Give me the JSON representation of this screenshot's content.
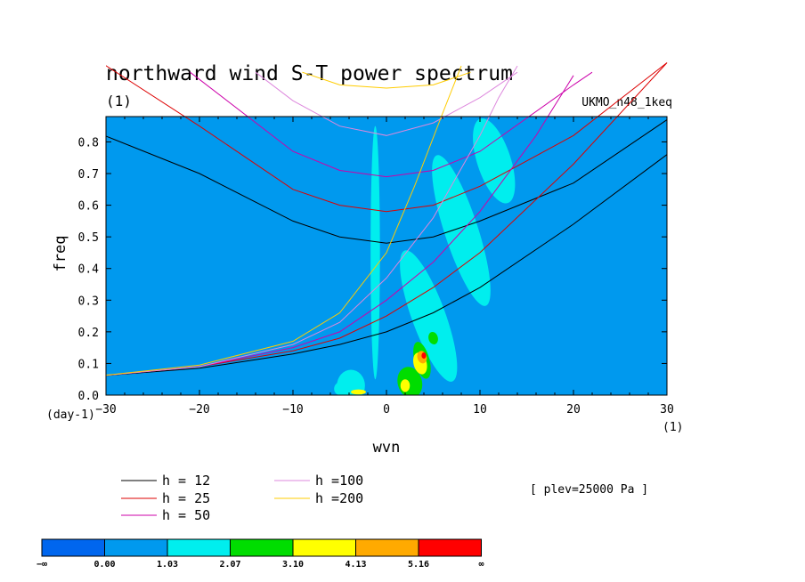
{
  "chart_data": {
    "type": "heatmap",
    "title": "northward wind S-T power spectrum",
    "subtitle": "(1)",
    "model": "UKMO_n48_1keq",
    "xlabel": "wvn",
    "ylabel": "freq",
    "x_unit": "(1)",
    "y_unit": "(day-1)",
    "xlim": [
      -30,
      30
    ],
    "ylim": [
      0,
      0.88
    ],
    "x_ticks": [
      -30,
      -20,
      -10,
      0,
      10,
      20,
      30
    ],
    "y_ticks": [
      0.0,
      0.1,
      0.2,
      0.3,
      0.4,
      0.5,
      0.6,
      0.7,
      0.8
    ],
    "x_tick_labels": [
      "−30",
      "−20",
      "−10",
      "0",
      "10",
      "20",
      "30"
    ],
    "y_tick_labels": [
      "0.0",
      "0.1",
      "0.2",
      "0.3",
      "0.4",
      "0.5",
      "0.6",
      "0.7",
      "0.8"
    ],
    "annotation": "[ plev=25000 Pa ]",
    "background_level": "0.00 to 1.03",
    "series": [
      {
        "name": "h = 12",
        "color": "#000000",
        "points": [
          [
            -31,
            0.83
          ],
          [
            -20,
            0.7
          ],
          [
            -10,
            0.55
          ],
          [
            -5,
            0.5
          ],
          [
            0,
            0.48
          ],
          [
            5,
            0.5
          ],
          [
            10,
            0.55
          ],
          [
            20,
            0.67
          ],
          [
            30,
            0.87
          ]
        ]
      },
      {
        "name": "h = 25",
        "color": "#dd0000",
        "points": [
          [
            -31,
            1.06
          ],
          [
            -20,
            0.85
          ],
          [
            -10,
            0.65
          ],
          [
            -5,
            0.6
          ],
          [
            0,
            0.58
          ],
          [
            5,
            0.6
          ],
          [
            10,
            0.66
          ],
          [
            20,
            0.82
          ],
          [
            30,
            1.05
          ]
        ]
      },
      {
        "name": "h = 50",
        "color": "#cc00aa",
        "points": [
          [
            -21,
            1.02
          ],
          [
            -10,
            0.77
          ],
          [
            -5,
            0.71
          ],
          [
            0,
            0.69
          ],
          [
            5,
            0.71
          ],
          [
            10,
            0.77
          ],
          [
            20,
            0.98
          ],
          [
            22,
            1.02
          ]
        ]
      },
      {
        "name": "h =100",
        "color": "#dd88dd",
        "points": [
          [
            -14,
            1.02
          ],
          [
            -10,
            0.93
          ],
          [
            -5,
            0.85
          ],
          [
            0,
            0.82
          ],
          [
            5,
            0.86
          ],
          [
            10,
            0.94
          ],
          [
            14,
            1.02
          ]
        ]
      },
      {
        "name": "h =200",
        "color": "#ffcc00",
        "points": [
          [
            -9,
            1.02
          ],
          [
            -5,
            0.98
          ],
          [
            0,
            0.97
          ],
          [
            5,
            0.98
          ],
          [
            9,
            1.02
          ]
        ]
      },
      {
        "name": "h = 12",
        "color": "#000000",
        "points": [
          [
            -31,
            0.06
          ],
          [
            -20,
            0.085
          ],
          [
            -10,
            0.13
          ],
          [
            -5,
            0.16
          ],
          [
            0,
            0.2
          ],
          [
            5,
            0.26
          ],
          [
            10,
            0.34
          ],
          [
            20,
            0.54
          ],
          [
            30,
            0.76
          ]
        ]
      },
      {
        "name": "h = 25",
        "color": "#dd0000",
        "points": [
          [
            -31,
            0.06
          ],
          [
            -20,
            0.09
          ],
          [
            -10,
            0.14
          ],
          [
            -5,
            0.18
          ],
          [
            0,
            0.25
          ],
          [
            5,
            0.34
          ],
          [
            10,
            0.45
          ],
          [
            20,
            0.73
          ],
          [
            30,
            1.05
          ]
        ]
      },
      {
        "name": "h = 50",
        "color": "#cc00aa",
        "points": [
          [
            -31,
            0.06
          ],
          [
            -20,
            0.09
          ],
          [
            -10,
            0.15
          ],
          [
            -5,
            0.2
          ],
          [
            0,
            0.3
          ],
          [
            5,
            0.42
          ],
          [
            10,
            0.58
          ],
          [
            16,
            0.82
          ],
          [
            20,
            1.01
          ]
        ]
      },
      {
        "name": "h =100",
        "color": "#dd88dd",
        "points": [
          [
            -31,
            0.06
          ],
          [
            -20,
            0.09
          ],
          [
            -10,
            0.16
          ],
          [
            -5,
            0.23
          ],
          [
            0,
            0.37
          ],
          [
            5,
            0.56
          ],
          [
            10,
            0.82
          ],
          [
            12,
            0.94
          ],
          [
            14,
            1.04
          ]
        ]
      },
      {
        "name": "h =200",
        "color": "#ffcc00",
        "points": [
          [
            -31,
            0.06
          ],
          [
            -20,
            0.095
          ],
          [
            -10,
            0.17
          ],
          [
            -5,
            0.26
          ],
          [
            0,
            0.45
          ],
          [
            3,
            0.66
          ],
          [
            6,
            0.89
          ],
          [
            8,
            1.04
          ]
        ]
      }
    ],
    "legend": [
      {
        "label": "h = 12",
        "color": "#000000"
      },
      {
        "label": "h = 25",
        "color": "#dd0000"
      },
      {
        "label": "h = 50",
        "color": "#cc00aa"
      },
      {
        "label": "h =100",
        "color": "#dd88dd"
      },
      {
        "label": "h =200",
        "color": "#ffcc00"
      }
    ],
    "colorbar": {
      "labels": [
        "−∞",
        "0.00",
        "1.03",
        "2.07",
        "3.10",
        "4.13",
        "5.16",
        "∞"
      ],
      "colors": [
        "#0066ee",
        "#0099ee",
        "#00eeee",
        "#00dd00",
        "#ffff00",
        "#ffaa00",
        "#ff0000"
      ]
    },
    "contour_regions": [
      {
        "level": 2,
        "cx": 4.5,
        "cy": 0.25,
        "rx": 1.8,
        "ry": 0.22,
        "rot": -20
      },
      {
        "level": 2,
        "cx": 8.0,
        "cy": 0.52,
        "rx": 1.8,
        "ry": 0.25,
        "rot": -18
      },
      {
        "level": 2,
        "cx": 11.5,
        "cy": 0.74,
        "rx": 1.8,
        "ry": 0.14,
        "rot": -18
      },
      {
        "level": 2,
        "cx": -1.2,
        "cy": 0.45,
        "rx": 0.5,
        "ry": 0.4,
        "rot": 0
      },
      {
        "level": 2,
        "cx": -3.8,
        "cy": 0.03,
        "rx": 1.5,
        "ry": 0.05,
        "rot": 0
      },
      {
        "level": 2,
        "cx": -5.0,
        "cy": 0.02,
        "rx": 0.6,
        "ry": 0.02,
        "rot": 0
      },
      {
        "level": 3,
        "cx": 2.5,
        "cy": 0.04,
        "rx": 1.3,
        "ry": 0.05,
        "rot": -15
      },
      {
        "level": 3,
        "cx": 3.8,
        "cy": 0.11,
        "rx": 0.8,
        "ry": 0.06,
        "rot": -15
      },
      {
        "level": 3,
        "cx": 5.0,
        "cy": 0.18,
        "rx": 0.5,
        "ry": 0.02,
        "rot": -15
      },
      {
        "level": 4,
        "cx": 3.6,
        "cy": 0.1,
        "rx": 0.7,
        "ry": 0.035,
        "rot": -15
      },
      {
        "level": 4,
        "cx": 2.0,
        "cy": 0.03,
        "rx": 0.5,
        "ry": 0.02,
        "rot": 0
      },
      {
        "level": 4,
        "cx": -3.0,
        "cy": 0.01,
        "rx": 0.8,
        "ry": 0.008,
        "rot": 0
      },
      {
        "level": 5,
        "cx": 3.8,
        "cy": 0.12,
        "rx": 0.5,
        "ry": 0.02,
        "rot": -15
      },
      {
        "level": 6,
        "cx": 4.0,
        "cy": 0.125,
        "rx": 0.25,
        "ry": 0.01,
        "rot": 0
      }
    ]
  }
}
